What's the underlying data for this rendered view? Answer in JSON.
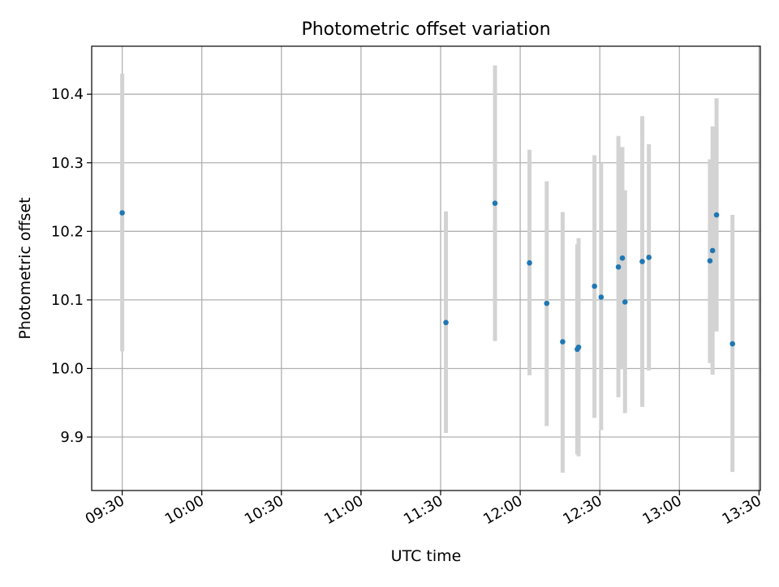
{
  "chart_data": {
    "type": "scatter",
    "title": "Photometric offset variation",
    "xlabel": "UTC time",
    "ylabel": "Photometric offset",
    "x_ticks": [
      "09:30",
      "10:00",
      "10:30",
      "11:00",
      "11:30",
      "12:00",
      "12:30",
      "13:00",
      "13:30"
    ],
    "y_ticks": [
      "9.9",
      "10.0",
      "10.1",
      "10.2",
      "10.3",
      "10.4"
    ],
    "xlim": [
      "09:18:30",
      "13:30:30"
    ],
    "ylim": [
      9.822,
      10.47
    ],
    "grid": true,
    "colors": {
      "point": "#1f77b4",
      "errorbar": "#d3d3d3",
      "grid": "#b0b0b0"
    },
    "points": [
      {
        "x": "09:30:00",
        "y": 10.227,
        "yerr_low": 10.025,
        "yerr_high": 10.43
      },
      {
        "x": "11:32:00",
        "y": 10.067,
        "yerr_low": 9.906,
        "yerr_high": 10.229
      },
      {
        "x": "11:50:30",
        "y": 10.241,
        "yerr_low": 10.04,
        "yerr_high": 10.442
      },
      {
        "x": "12:03:30",
        "y": 10.154,
        "yerr_low": 9.99,
        "yerr_high": 10.319
      },
      {
        "x": "12:10:00",
        "y": 10.095,
        "yerr_low": 9.916,
        "yerr_high": 10.273
      },
      {
        "x": "12:16:00",
        "y": 10.039,
        "yerr_low": 9.848,
        "yerr_high": 10.228
      },
      {
        "x": "12:21:30",
        "y": 10.028,
        "yerr_low": 9.875,
        "yerr_high": 10.181
      },
      {
        "x": "12:22:00",
        "y": 10.031,
        "yerr_low": 9.872,
        "yerr_high": 10.19
      },
      {
        "x": "12:28:00",
        "y": 10.12,
        "yerr_low": 9.928,
        "yerr_high": 10.311
      },
      {
        "x": "12:30:30",
        "y": 10.104,
        "yerr_low": 9.91,
        "yerr_high": 10.3
      },
      {
        "x": "12:37:00",
        "y": 10.148,
        "yerr_low": 9.958,
        "yerr_high": 10.339
      },
      {
        "x": "12:38:30",
        "y": 10.161,
        "yerr_low": 9.999,
        "yerr_high": 10.323
      },
      {
        "x": "12:39:30",
        "y": 10.097,
        "yerr_low": 9.935,
        "yerr_high": 10.26
      },
      {
        "x": "12:46:00",
        "y": 10.156,
        "yerr_low": 9.944,
        "yerr_high": 10.368
      },
      {
        "x": "12:48:30",
        "y": 10.162,
        "yerr_low": 9.997,
        "yerr_high": 10.327
      },
      {
        "x": "13:11:30",
        "y": 10.157,
        "yerr_low": 10.008,
        "yerr_high": 10.305
      },
      {
        "x": "13:12:30",
        "y": 10.172,
        "yerr_low": 9.991,
        "yerr_high": 10.353
      },
      {
        "x": "13:14:00",
        "y": 10.224,
        "yerr_low": 10.054,
        "yerr_high": 10.394
      },
      {
        "x": "13:20:00",
        "y": 10.036,
        "yerr_low": 9.849,
        "yerr_high": 10.224
      }
    ]
  }
}
